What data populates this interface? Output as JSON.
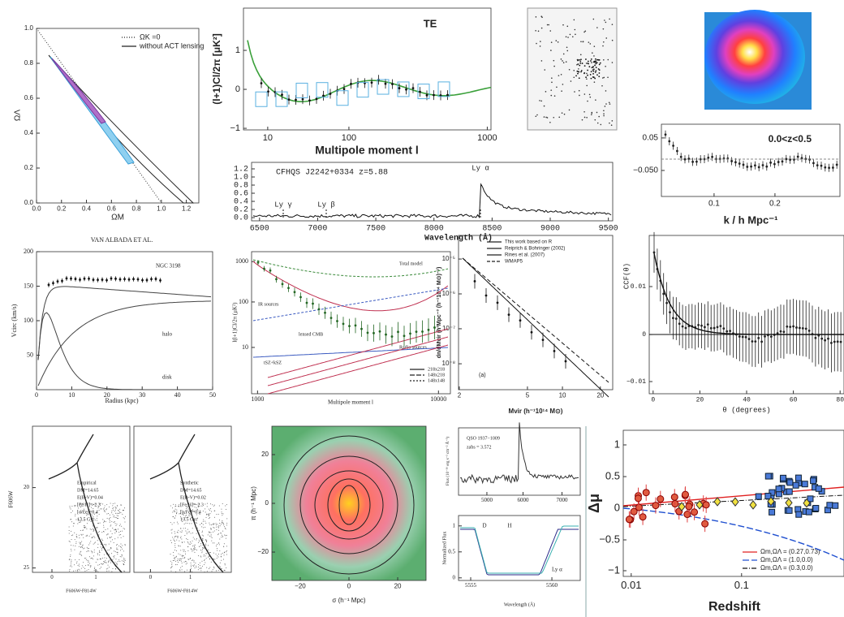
{
  "panels": {
    "density_parameters": {
      "x_label": "ΩM",
      "y_label": "ΩΛ",
      "x_ticks": [
        "0.0",
        "0.2",
        "0.4",
        "0.6",
        "0.8",
        "1.0",
        "1.2"
      ],
      "y_ticks": [
        "0.0",
        "0.2",
        "0.4",
        "0.6",
        "0.8",
        "1.0"
      ],
      "legend": [
        "ΩK =0",
        "without ACT lensing"
      ]
    },
    "te_spectrum": {
      "title": "TE",
      "x_label": "Multipole moment l",
      "y_label": "(l+1)Cl/2π [μK²]",
      "x_ticks": [
        "10",
        "100",
        "1000"
      ],
      "y_ticks": [
        "−1",
        "0",
        "1"
      ]
    },
    "power_ratio": {
      "annotations": [
        "0.0<z<0.5"
      ],
      "x_label": "k / h Mpc⁻¹",
      "x_ticks": [
        "0.1",
        "0.2"
      ],
      "y_ticks": [
        "−0.050",
        "0.05"
      ]
    },
    "quasar_spectrum": {
      "annotations": [
        "CFHQS J2242+0334 z=5.88",
        "Ly γ",
        "Ly β",
        "Ly α"
      ],
      "x_label": "Wavelength (Å)",
      "x_ticks": [
        "6500",
        "7000",
        "7500",
        "8000",
        "8500",
        "9000",
        "9500"
      ],
      "y_ticks": [
        "0.0",
        "0.2",
        "0.4",
        "0.6",
        "0.8",
        "1.0",
        "1.2"
      ]
    },
    "rotation_curve": {
      "title": "VAN ALBADA ET AL.",
      "annotations": [
        "NGC 3198",
        "halo",
        "disk"
      ],
      "x_label": "Radius  (kpc)",
      "y_label": "Vcirc (km/s)",
      "x_ticks": [
        "0",
        "10",
        "20",
        "30",
        "40",
        "50"
      ],
      "y_ticks": [
        "50",
        "100",
        "150",
        "200"
      ]
    },
    "cmb_power": {
      "annotations": [
        "Total model",
        "IR sources",
        "lensed CMB",
        "tSZ+kSZ",
        "Radio sources"
      ],
      "legend": [
        "218x218",
        "148x218",
        "148x148"
      ],
      "x_label": "Multipole moment l",
      "y_label": "l(l+1)Cl/2π (μK²)",
      "x_ticks": [
        "1000",
        "10000"
      ],
      "y_ticks": [
        "10",
        "100",
        "1000"
      ]
    },
    "mass_function": {
      "legend": [
        "This work based on R",
        "Reiprich & Bohringer (2002)",
        "Rines et al. (2007)",
        "WMAP5"
      ],
      "annotations": [
        "(a)"
      ],
      "x_label": "Mvir (h⁻¹10¹⁴ M⊙)",
      "y_label": "dn/dMvir (h³Mpc⁻³ (h⁻¹10¹⁴ M⊙)⁻¹)",
      "x_ticks": [
        "2",
        "5",
        "10",
        "20"
      ],
      "y_ticks": [
        "10⁻⁸",
        "10⁻⁷",
        "10⁻⁶",
        "10⁻⁵"
      ]
    },
    "ccf": {
      "x_label": "θ (degrees)",
      "y_label": "CCF(θ)",
      "x_ticks": [
        "0",
        "20",
        "40",
        "60",
        "80"
      ],
      "y_ticks": [
        "−0.01",
        "0",
        "0.01"
      ]
    },
    "cmd_empirical": {
      "x_label": "F606W-F814W",
      "y_label": "F606W",
      "annotations": [
        "Empirical",
        "DM=14.65",
        "E(B-V)=0.04",
        "[Fe/H]=-2.3",
        "[α/Fe]=0.4",
        "13.5 Gyr"
      ],
      "x_ticks": [
        "0",
        "1"
      ],
      "y_ticks": [
        "25",
        "20"
      ]
    },
    "cmd_synthetic": {
      "x_label": "F606W-F814W",
      "annotations": [
        "Synthetic",
        "DM=14.65",
        "E(B-V)=0.02",
        "[Fe/H]=-2.3",
        "[α/Fe]=0.4",
        "13.5 Gyr"
      ],
      "x_ticks": [
        "0",
        "1"
      ]
    },
    "redshift_space": {
      "x_label": "σ (h⁻¹ Mpc)",
      "y_label": "π (h⁻¹ Mpc)",
      "x_ticks": [
        "−20",
        "0",
        "20"
      ],
      "y_ticks": [
        "−20",
        "0",
        "20"
      ]
    },
    "qso_flux": {
      "annotations": [
        "QSO 1937−1009",
        "zabs = 3.572"
      ],
      "y_label": "Flux (10⁻¹⁶ erg s⁻¹ cm⁻² Å⁻¹)",
      "x_ticks": [
        "5000",
        "6000",
        "7000"
      ]
    },
    "qso_normalized": {
      "annotations": [
        "D",
        "H",
        "Ly α"
      ],
      "x_label": "Wavelength (Å)",
      "y_label": "Normalized Flux",
      "x_ticks": [
        "5555",
        "5560"
      ],
      "y_ticks": [
        "0",
        "0.5",
        "1"
      ]
    },
    "hubble_residuals": {
      "x_label": "Redshift",
      "y_label": "Δμ",
      "x_ticks": [
        "0.01",
        "0.1"
      ],
      "y_ticks": [
        "−1",
        "−0.5",
        "0",
        "0.5",
        "1"
      ],
      "legend": [
        "Ωm,ΩΛ = (0.27,0.73)",
        "Ωm,ΩΛ = (1.0,0.0)",
        "Ωm,ΩΛ = (0.3,0.0)"
      ]
    }
  }
}
